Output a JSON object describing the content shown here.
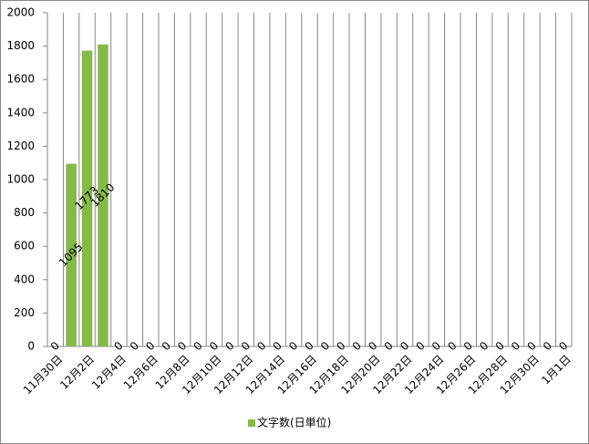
{
  "chart_data": {
    "type": "bar",
    "categories": [
      "11月30日",
      null,
      "12月2日",
      null,
      "12月4日",
      null,
      "12月6日",
      null,
      "12月8日",
      null,
      "12月10日",
      null,
      "12月12日",
      null,
      "12月14日",
      null,
      "12月16日",
      null,
      "12月18日",
      null,
      "12月20日",
      null,
      "12月22日",
      null,
      "12月24日",
      null,
      "12月26日",
      null,
      "12月28日",
      null,
      "12月30日",
      null,
      "1月1日"
    ],
    "series": [
      {
        "name": "文字数(日単位)",
        "color": "#86b84a",
        "values": [
          0,
          1095,
          1773,
          1810,
          0,
          0,
          0,
          0,
          0,
          0,
          0,
          0,
          0,
          0,
          0,
          0,
          0,
          0,
          0,
          0,
          0,
          0,
          0,
          0,
          0,
          0,
          0,
          0,
          0,
          0,
          0,
          0,
          0
        ]
      }
    ],
    "ylim": [
      0,
      2000
    ],
    "yticks": [
      0,
      200,
      400,
      600,
      800,
      1000,
      1200,
      1400,
      1600,
      1800,
      2000
    ],
    "category_grid": true,
    "legend": "bottom"
  }
}
